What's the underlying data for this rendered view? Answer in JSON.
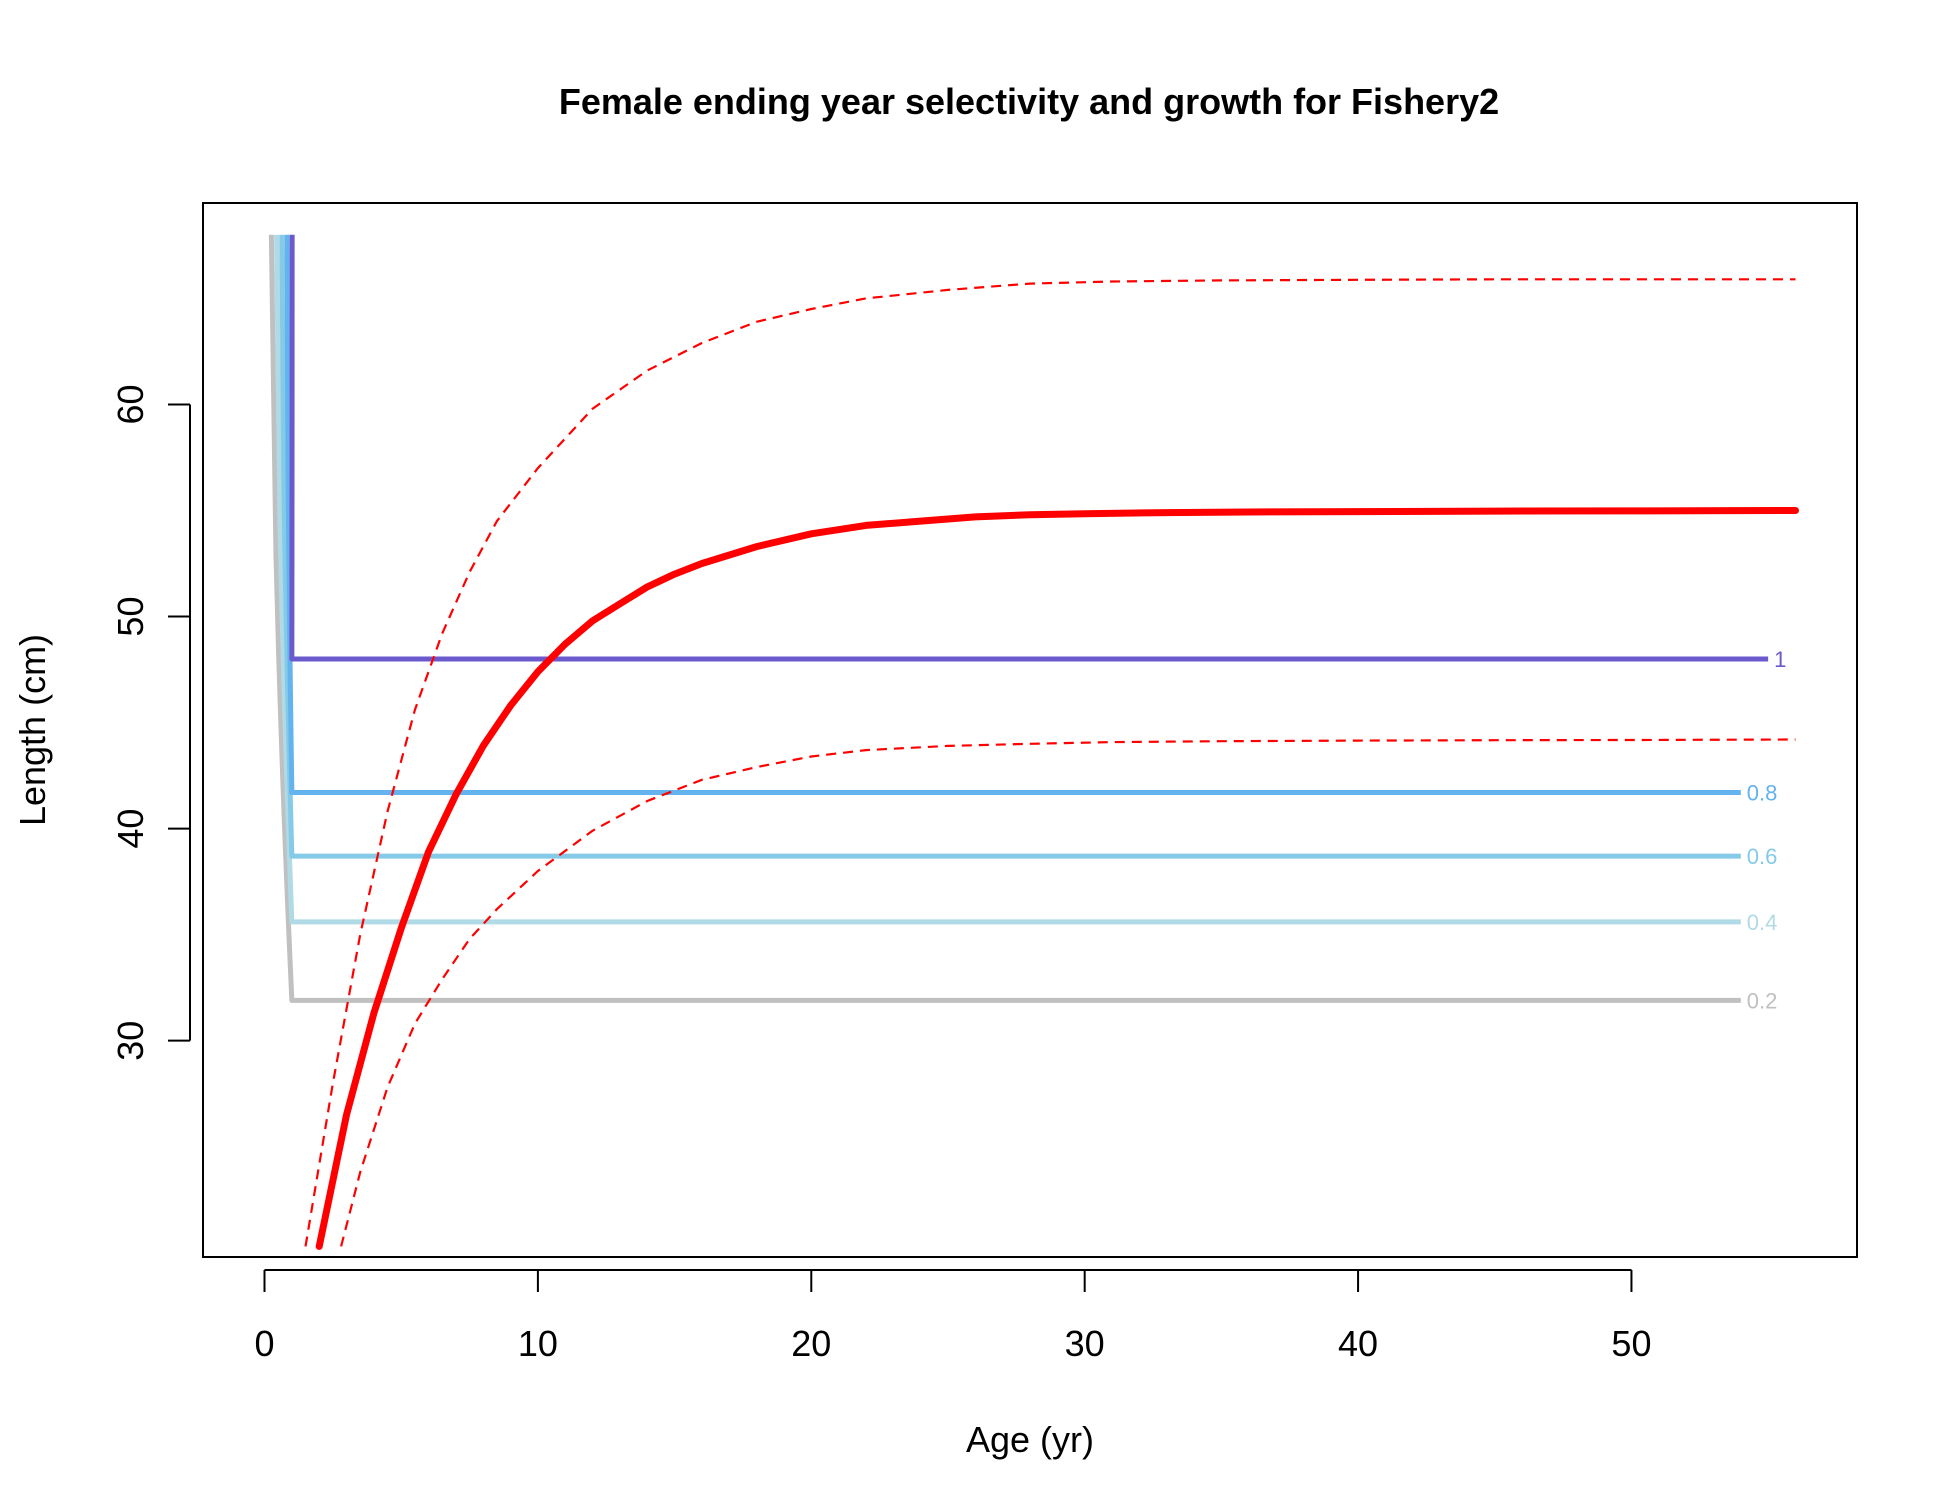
{
  "chart_data": {
    "type": "line",
    "title": "Female ending year selectivity and growth for Fishery2",
    "xlabel": "Age (yr)",
    "ylabel": "Length (cm)",
    "xlim": [
      -2.25,
      58.25
    ],
    "ylim": [
      19.8,
      69.5
    ],
    "xticks": [
      0,
      10,
      20,
      30,
      40,
      50
    ],
    "yticks": [
      30,
      40,
      50,
      60
    ],
    "grid": false,
    "legend": "none",
    "growth": {
      "color": "#ff0000",
      "mean": {
        "x": [
          2,
          3,
          4,
          5,
          6,
          7,
          8,
          9,
          10,
          11,
          12,
          13,
          14,
          15,
          16,
          18,
          20,
          22,
          24,
          26,
          28,
          30,
          33,
          36,
          40,
          45,
          50,
          56
        ],
        "y": [
          20.3,
          26.5,
          31.3,
          35.3,
          38.9,
          41.6,
          43.9,
          45.8,
          47.4,
          48.7,
          49.8,
          50.6,
          51.4,
          52.0,
          52.5,
          53.3,
          53.9,
          54.3,
          54.5,
          54.7,
          54.8,
          54.85,
          54.9,
          54.93,
          54.95,
          54.97,
          54.98,
          55.0
        ]
      },
      "upper": {
        "x": [
          1.5,
          2.5,
          3.5,
          4.5,
          5.5,
          6.5,
          7.5,
          8.5,
          10,
          12,
          14,
          16,
          18,
          20,
          22,
          25,
          28,
          31,
          35,
          40,
          45,
          50,
          56
        ],
        "y": [
          20.3,
          28.0,
          35.0,
          40.8,
          45.6,
          49.2,
          52.1,
          54.5,
          57.0,
          59.8,
          61.6,
          62.9,
          63.9,
          64.5,
          65.0,
          65.4,
          65.7,
          65.8,
          65.85,
          65.88,
          65.9,
          65.9,
          65.9
        ]
      },
      "lower": {
        "x": [
          2.8,
          3.5,
          4.5,
          5.5,
          6.5,
          7.5,
          8.5,
          10,
          12,
          14,
          16,
          18,
          20,
          22,
          25,
          28,
          31,
          35,
          40,
          45,
          50,
          56
        ],
        "y": [
          20.3,
          23.8,
          27.8,
          30.8,
          32.9,
          34.8,
          36.2,
          38.0,
          39.9,
          41.3,
          42.3,
          42.9,
          43.4,
          43.7,
          43.9,
          44.0,
          44.08,
          44.12,
          44.15,
          44.17,
          44.18,
          44.2
        ]
      }
    },
    "selectivity_contours": [
      {
        "level": "1",
        "color": "#6a5acd",
        "y": 48.0,
        "x_start": 1.0,
        "x_end": 55.0
      },
      {
        "level": "0.8",
        "color": "#63b3ee",
        "y": 41.7,
        "x_start": 1.0,
        "x_end": 54.0
      },
      {
        "level": "0.6",
        "color": "#85cbe8",
        "y": 38.7,
        "x_start": 1.0,
        "x_end": 54.0
      },
      {
        "level": "0.4",
        "color": "#b0dae6",
        "y": 35.6,
        "x_start": 1.0,
        "x_end": 54.0
      },
      {
        "level": "0.2",
        "color": "#c0c0c0",
        "y": 31.9,
        "x_start": 1.0,
        "x_end": 54.0
      }
    ],
    "contour_top": 68.0
  }
}
